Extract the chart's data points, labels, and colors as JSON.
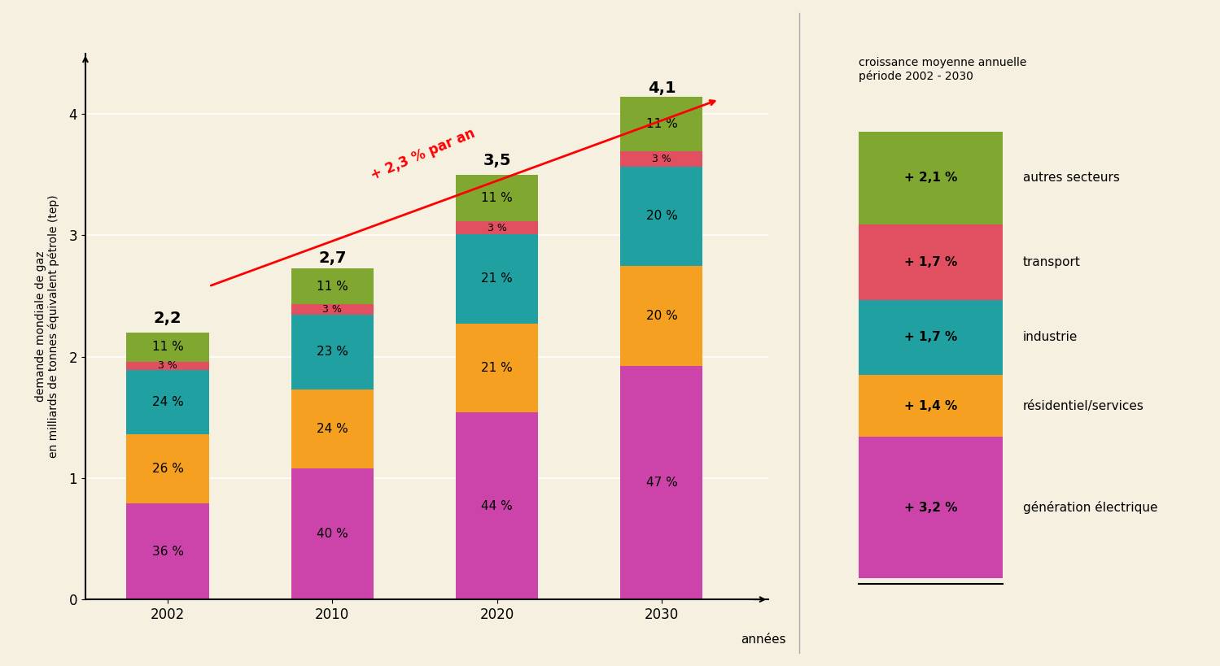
{
  "background_color": "#f5f0e0",
  "left_panel": {
    "ylabel": "demande mondiale de gaz\nen milliards de tonnes équivalent pétrole (tep)",
    "xlabel": "années",
    "ylim": [
      0,
      4.5
    ],
    "yticks": [
      0,
      1,
      2,
      3,
      4
    ],
    "years": [
      2002,
      2010,
      2020,
      2030
    ],
    "totals": [
      2.2,
      2.7,
      3.5,
      4.1
    ],
    "percentages": {
      "generation": [
        36,
        40,
        44,
        47
      ],
      "residentiel": [
        26,
        24,
        21,
        20
      ],
      "industrie": [
        24,
        23,
        21,
        20
      ],
      "transport": [
        3,
        3,
        3,
        3
      ],
      "autres": [
        11,
        11,
        11,
        11
      ]
    },
    "colors": {
      "generation": "#cc44aa",
      "residentiel": "#f5a020",
      "industrie": "#20a0a0",
      "transport": "#e05060",
      "autres": "#80a830"
    },
    "arrow_label": "+ 2,3 % par an",
    "arrow_rotation": 23
  },
  "right_panel": {
    "title": "croissance moyenne annuelle\npériode 2002 - 2030",
    "segments": [
      {
        "label": "génération électrique",
        "pct": "+ 3,2 %",
        "color": "#cc44aa",
        "value": 3.2
      },
      {
        "label": "résidentiel/services",
        "pct": "+ 1,4 %",
        "color": "#f5a020",
        "value": 1.4
      },
      {
        "label": "industrie",
        "pct": "+ 1,7 %",
        "color": "#20a0a0",
        "value": 1.7
      },
      {
        "label": "transport",
        "pct": "+ 1,7 %",
        "color": "#e05060",
        "value": 1.7
      },
      {
        "label": "autres secteurs",
        "pct": "+ 2,1 %",
        "color": "#80a830",
        "value": 2.1
      }
    ]
  }
}
